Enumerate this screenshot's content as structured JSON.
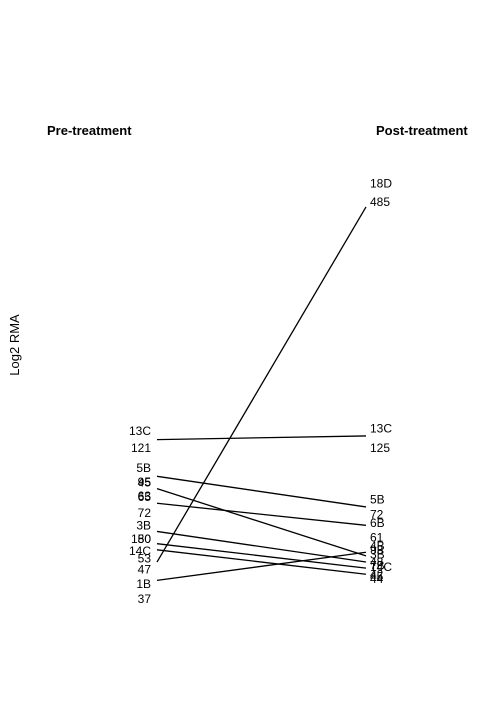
{
  "chart_data": {
    "type": "line",
    "style": "slopegraph",
    "title": "",
    "xlabel": "",
    "ylabel": "Log2 RMA",
    "columns": [
      "Pre-treatment",
      "Post-treatment"
    ],
    "grid": false,
    "legend": "none",
    "series": [
      {
        "name": "18D",
        "pre_value": "180",
        "post_value": "485",
        "pre": 6.3,
        "post": 9.2
      },
      {
        "name": "13C",
        "pre_value": "121",
        "post_value": "125",
        "pre": 7.3,
        "post": 7.33
      },
      {
        "name": "5B",
        "pre_value": "45",
        "post_value": "72",
        "pre": 7.0,
        "post": 6.75
      },
      {
        "name": "4B",
        "pre_value": "95",
        "post_value": "93",
        "pre": 6.9,
        "post": 6.35
      },
      {
        "name": "6B",
        "pre_value": "63",
        "post_value": "61",
        "pre": 6.78,
        "post": 6.6
      },
      {
        "name": "3B",
        "pre_value": "50",
        "post_value": "48",
        "pre": 6.55,
        "post": 6.3
      },
      {
        "name": "14C",
        "pre_value": "53",
        "post_value": "42",
        "pre": 6.4,
        "post": 6.2
      },
      {
        "name": "7B",
        "pre_value": "47",
        "post_value": "44",
        "pre": 6.45,
        "post": 6.25
      },
      {
        "name": "1B",
        "pre_value": "37",
        "post_value": "45",
        "pre": 6.15,
        "post": 6.38
      }
    ],
    "pre_labels": [
      {
        "text": "13C",
        "at": 7.37
      },
      {
        "text": "121",
        "at": 7.23
      },
      {
        "text": "5B",
        "at": 7.07
      },
      {
        "text": "45",
        "at": 6.95
      },
      {
        "text": "95",
        "at": 6.955
      },
      {
        "text": "63",
        "at": 6.84
      },
      {
        "text": "65",
        "at": 6.83
      },
      {
        "text": "72",
        "at": 6.7
      },
      {
        "text": "3B",
        "at": 6.6
      },
      {
        "text": "180",
        "at": 6.49
      },
      {
        "text": "50",
        "at": 6.49
      },
      {
        "text": "14C",
        "at": 6.39
      },
      {
        "text": "53",
        "at": 6.33
      },
      {
        "text": "47",
        "at": 6.24
      },
      {
        "text": "1B",
        "at": 6.12
      },
      {
        "text": "37",
        "at": 6.0
      }
    ],
    "post_labels": [
      {
        "text": "18D",
        "at": 9.39
      },
      {
        "text": "485",
        "at": 9.24
      },
      {
        "text": "13C",
        "at": 7.39
      },
      {
        "text": "125",
        "at": 7.23
      },
      {
        "text": "5B",
        "at": 6.81
      },
      {
        "text": "72",
        "at": 6.69
      },
      {
        "text": "6B",
        "at": 6.62
      },
      {
        "text": "61",
        "at": 6.5
      },
      {
        "text": "4B",
        "at": 6.43
      },
      {
        "text": "93",
        "at": 6.4
      },
      {
        "text": "3B",
        "at": 6.36
      },
      {
        "text": "48",
        "at": 6.3
      },
      {
        "text": "14C",
        "at": 6.26
      },
      {
        "text": "7B",
        "at": 6.27
      },
      {
        "text": "42",
        "at": 6.2
      },
      {
        "text": "45",
        "at": 6.18
      },
      {
        "text": "44",
        "at": 6.16
      }
    ],
    "ylim": [
      5.5,
      10.4
    ]
  }
}
